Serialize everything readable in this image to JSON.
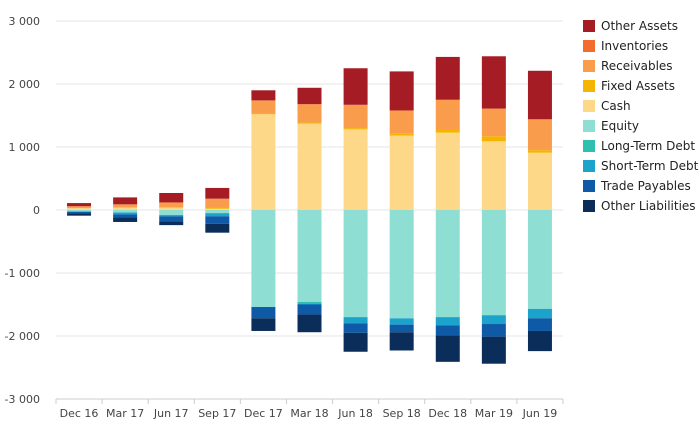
{
  "chart_data": {
    "type": "bar",
    "stacked": true,
    "categories": [
      "Dec 16",
      "Mar 17",
      "Jun 17",
      "Sep 17",
      "Dec 17",
      "Mar 18",
      "Jun 18",
      "Sep 18",
      "Dec 18",
      "Mar 19",
      "Jun 19"
    ],
    "ylim": [
      -3000,
      3000
    ],
    "yticks": [
      -3000,
      -2000,
      -1000,
      0,
      1000,
      2000,
      3000
    ],
    "ytick_labels": [
      "-3 000",
      "-2 000",
      "-1 000",
      "0",
      "1 000",
      "2 000",
      "3 000"
    ],
    "grid": true,
    "legend_position": "right",
    "series": [
      {
        "name": "Other Assets",
        "color": "#a51c24",
        "sign": "positive",
        "values": [
          50,
          110,
          150,
          170,
          160,
          260,
          580,
          620,
          680,
          830,
          770
        ]
      },
      {
        "name": "Inventories",
        "color": "#f26c2e",
        "sign": "positive",
        "values": [
          0,
          0,
          0,
          0,
          0,
          0,
          0,
          0,
          0,
          0,
          0
        ]
      },
      {
        "name": "Receivables",
        "color": "#f99d4c",
        "sign": "positive",
        "values": [
          30,
          50,
          80,
          140,
          200,
          290,
          370,
          360,
          480,
          440,
          490
        ]
      },
      {
        "name": "Fixed Assets",
        "color": "#f5b400",
        "sign": "positive",
        "values": [
          0,
          0,
          0,
          20,
          20,
          20,
          20,
          40,
          40,
          80,
          40
        ]
      },
      {
        "name": "Cash",
        "color": "#fcd888",
        "sign": "positive",
        "values": [
          30,
          40,
          40,
          20,
          1520,
          1370,
          1280,
          1180,
          1230,
          1090,
          910
        ]
      },
      {
        "name": "Equity",
        "color": "#8fded4",
        "sign": "negative",
        "values": [
          -20,
          -40,
          -80,
          -50,
          -1540,
          -1460,
          -1700,
          -1720,
          -1700,
          -1670,
          -1570
        ]
      },
      {
        "name": "Long-Term Debt",
        "color": "#2fbfb0",
        "sign": "negative",
        "values": [
          0,
          0,
          0,
          0,
          0,
          -20,
          0,
          0,
          0,
          0,
          0
        ]
      },
      {
        "name": "Short-Term Debt",
        "color": "#1ba3cc",
        "sign": "negative",
        "values": [
          -10,
          -30,
          -20,
          -50,
          0,
          -20,
          -100,
          -100,
          -130,
          -140,
          -150
        ]
      },
      {
        "name": "Trade Payables",
        "color": "#0e5aa7",
        "sign": "negative",
        "values": [
          -20,
          -50,
          -80,
          -120,
          -180,
          -160,
          -150,
          -120,
          -160,
          -200,
          -200
        ]
      },
      {
        "name": "Other Liabilities",
        "color": "#0b2d5a",
        "sign": "negative",
        "values": [
          -40,
          -70,
          -60,
          -140,
          -200,
          -280,
          -300,
          -290,
          -420,
          -430,
          -320
        ]
      }
    ]
  }
}
